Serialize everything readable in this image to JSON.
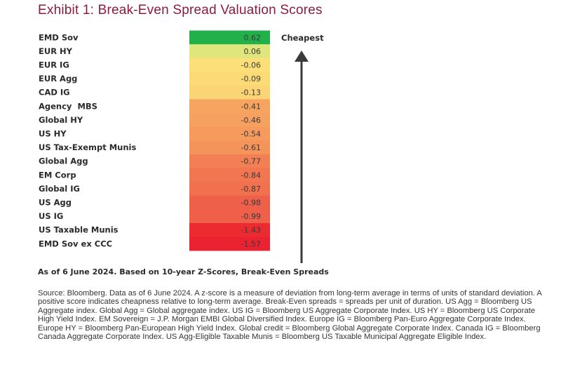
{
  "title": "Exhibit 1: Break-Even Spread Valuation Scores",
  "subtitle": "As of 6 June 2024. Based on 10-year Z-Scores, Break-Even Spreads",
  "source": "Source: Bloomberg. Data as of 6 June 2024. A z-score is a measure of deviation from long-term average in terms of units of standard deviation. A positive score indicates cheapness relative to long-term average. Break-Even spreads = spreads per unit of duration. US Agg = Bloomberg US Aggregate index. Global Agg = Global aggregate index. US IG = Bloomberg US Aggregate Corporate Index. US HY = Bloomberg US Corporate High Yield Index. EM Sovereign = J.P. Morgan EMBI Global Diversified Index. Europe IG = Bloomberg Pan-Euro Aggregate Corporate Index. Europe HY = Bloomberg Pan-European High Yield Index. Global credit = Bloomberg Global Aggregate Corporate Index. Canada IG = Bloomberg Canada Aggregate Corporate Index. US Agg-Eligible Taxable Munis = Bloomberg US Taxable Municipal Aggregate Eligible Index.",
  "chart_data": {
    "type": "table",
    "categories": [
      "EMD Sov",
      "EUR HY",
      "EUR IG",
      "EUR Agg",
      "CAD IG",
      "Agency  MBS",
      "Global HY",
      "US HY",
      "US Tax-Exempt Munis",
      "Global Agg",
      "EM Corp",
      "Global IG",
      "US Agg",
      "US IG",
      "US Taxable Munis",
      "EMD Sov ex CCC"
    ],
    "values": [
      0.62,
      0.06,
      -0.06,
      -0.09,
      -0.13,
      -0.41,
      -0.46,
      -0.54,
      -0.61,
      -0.77,
      -0.84,
      -0.87,
      -0.98,
      -0.99,
      -1.43,
      -1.57
    ],
    "value_labels": [
      "0.62",
      "0.06",
      "-0.06",
      "-0.09",
      "-0.13",
      "-0.41",
      "-0.46",
      "-0.54",
      "-0.61",
      "-0.77",
      "-0.84",
      "-0.87",
      "-0.98",
      "-0.99",
      "-1.43",
      "-1.57"
    ],
    "cell_colors": [
      "#22b04b",
      "#dfe67c",
      "#fcdf78",
      "#fcdb77",
      "#fbd475",
      "#f7a460",
      "#f7a160",
      "#f69b5d",
      "#f5945a",
      "#f37f54",
      "#f27650",
      "#f1714e",
      "#ef604a",
      "#ef5f49",
      "#ec2b31",
      "#eb2330"
    ],
    "annotation": "Cheapest",
    "arrow_color": "#3a3a3a"
  }
}
